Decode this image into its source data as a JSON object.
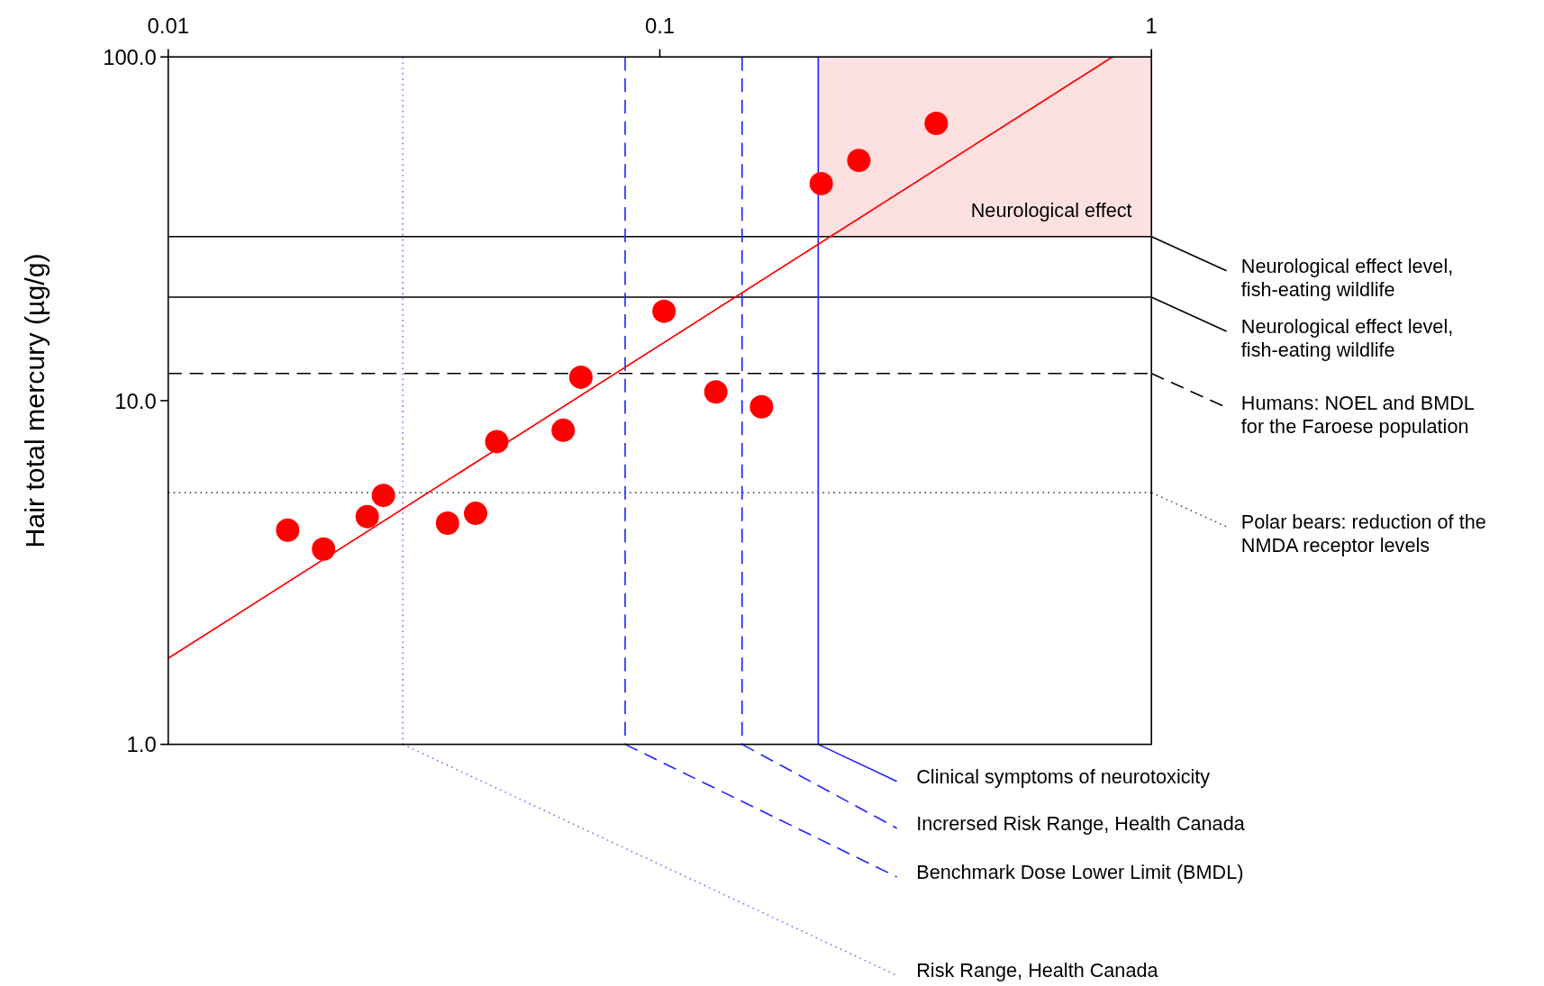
{
  "chart_data": {
    "type": "scatter",
    "ylabel": "Hair total mercury (µg/g)",
    "log": "xy",
    "grid": false,
    "legend": "right",
    "marker": "circle",
    "xlim": [
      0.01,
      1
    ],
    "xticks": [
      0.01,
      0.1,
      1
    ],
    "ylim": [
      1,
      100
    ],
    "yticks": [
      {
        "value": 1,
        "label": "1.0"
      },
      {
        "value": 10,
        "label": "10.0"
      },
      {
        "value": 100,
        "label": "100.0"
      }
    ],
    "series": [
      {
        "color": "#ff0000",
        "x": [
          0.0175,
          0.0207,
          0.0254,
          0.0274,
          0.037,
          0.0422,
          0.0466,
          0.0636,
          0.0691,
          0.102,
          0.13,
          0.161,
          0.213,
          0.254,
          0.365
        ],
        "values": [
          4.2,
          3.7,
          4.6,
          5.3,
          4.4,
          4.7,
          7.6,
          8.2,
          11.7,
          18.2,
          10.6,
          9.6,
          42.8,
          50,
          64.1
        ]
      },
      {
        "type": "line",
        "color": "#ff0000",
        "line_style": "solid",
        "marker": "none",
        "x": [
          0.01,
          0.833
        ],
        "values": [
          1.78,
          100
        ]
      }
    ],
    "ref_lines": [
      {
        "axis": "y",
        "value": 30,
        "label": "Neurological effect level,\nfish-eating wildlife",
        "color": "#000000",
        "line_style": "solid"
      },
      {
        "axis": "y",
        "value": 20,
        "label": "Neurological effect level,\nfish-eating wildlife",
        "color": "#000000",
        "line_style": "solid"
      },
      {
        "axis": "y",
        "value": 12,
        "label": "Humans: NOEL and BMDL\nfor the Faroese population",
        "color": "#000000",
        "line_style": "dashed"
      },
      {
        "axis": "y",
        "value": 5.4,
        "label": "Polar bears: reduction of the\nNMDA receptor levels",
        "color": "#555555",
        "line_style": "dotted"
      },
      {
        "axis": "x",
        "value": 0.21,
        "label": "Clinical symptoms of neurotoxicity",
        "color": "#2222ff",
        "line_style": "solid"
      },
      {
        "axis": "x",
        "value": 0.147,
        "label": "Incrersed Risk Range, Health Canada",
        "color": "#2222ff",
        "line_style": "dashed"
      },
      {
        "axis": "x",
        "value": 0.085,
        "label": "Benchmark Dose Lower Limit (BMDL)",
        "color": "#2222ff",
        "line_style": "dashed"
      },
      {
        "axis": "x",
        "value": 0.03,
        "label": "Risk Range, Health Canada",
        "color": "#7777ff",
        "line_style": "dotted"
      }
    ],
    "bands": [
      {
        "axis": "x",
        "from": 0.21,
        "to": 1,
        "label": "Neurological effect",
        "color": "#fde0e0"
      }
    ]
  }
}
